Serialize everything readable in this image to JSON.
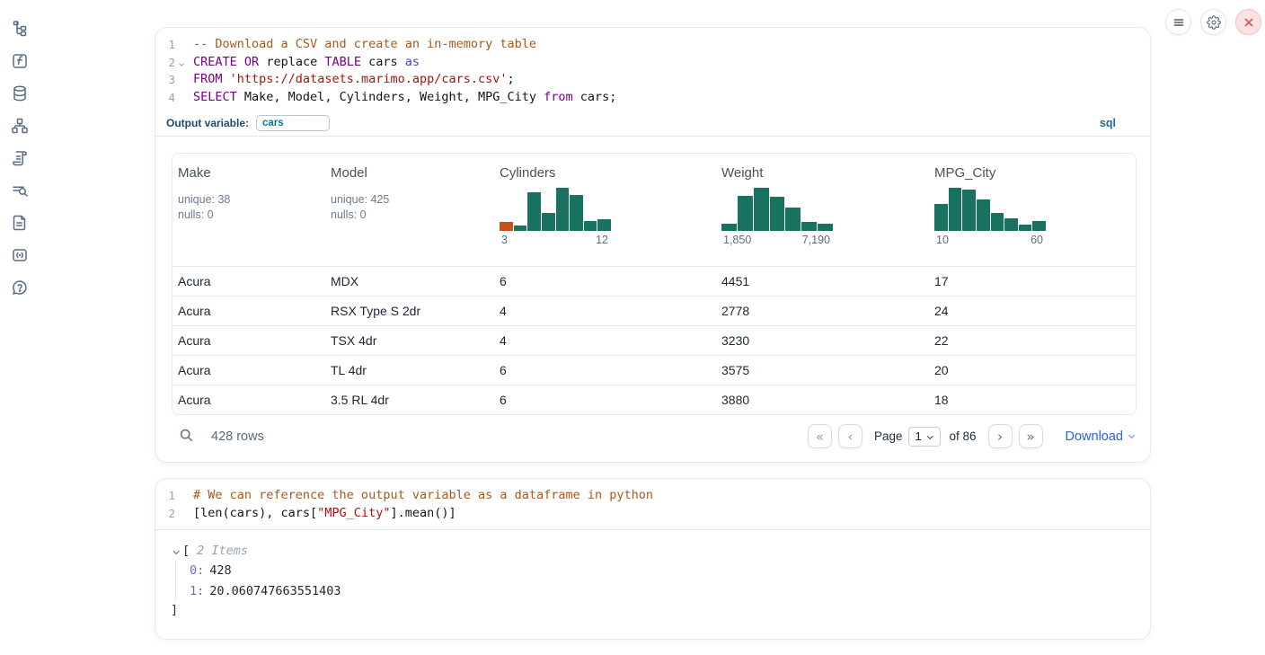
{
  "colors": {
    "accent": "#2563eb",
    "hist": "#17735f",
    "hist_highlight": "#c2511c",
    "keyword": "#770088",
    "string": "#aa1111"
  },
  "sidebar": {
    "items": [
      {
        "name": "file-explorer"
      },
      {
        "name": "variables"
      },
      {
        "name": "data-sources"
      },
      {
        "name": "dependency-graph"
      },
      {
        "name": "scratchpad"
      },
      {
        "name": "logs-search"
      },
      {
        "name": "documentation"
      },
      {
        "name": "snippets"
      },
      {
        "name": "help"
      }
    ]
  },
  "controls": {
    "menu": "menu",
    "settings": "settings",
    "close": "shutdown"
  },
  "cells": [
    {
      "language": "sql",
      "output_variable": {
        "label": "Output variable:",
        "value": "cars"
      },
      "language_tag": "sql",
      "lines": [
        {
          "num": "1",
          "fold": false,
          "tokens": [
            {
              "s": "comment",
              "t": "-- Download a CSV and create an in-memory table"
            }
          ]
        },
        {
          "num": "2",
          "fold": true,
          "tokens": [
            {
              "s": "keyword",
              "t": "CREATE"
            },
            {
              "s": "plain",
              "t": " "
            },
            {
              "s": "keyword",
              "t": "OR"
            },
            {
              "s": "plain",
              "t": " replace "
            },
            {
              "s": "keyword",
              "t": "TABLE"
            },
            {
              "s": "plain",
              "t": " cars "
            },
            {
              "s": "askw",
              "t": "as"
            }
          ]
        },
        {
          "num": "3",
          "fold": false,
          "tokens": [
            {
              "s": "keyword",
              "t": "FROM"
            },
            {
              "s": "plain",
              "t": " "
            },
            {
              "s": "string",
              "t": "'https://datasets.marimo.app/cars.csv'"
            },
            {
              "s": "plain",
              "t": ";"
            }
          ]
        },
        {
          "num": "4",
          "fold": false,
          "tokens": [
            {
              "s": "keyword",
              "t": "SELECT"
            },
            {
              "s": "plain",
              "t": " Make, Model, Cylinders, Weight, MPG_City "
            },
            {
              "s": "keyword",
              "t": "from"
            },
            {
              "s": "plain",
              "t": " cars;"
            }
          ]
        }
      ]
    },
    {
      "language": "python",
      "lines": [
        {
          "num": "1",
          "fold": false,
          "tokens": [
            {
              "s": "comment",
              "t": "# We can reference the output variable as a dataframe in python"
            }
          ]
        },
        {
          "num": "2",
          "fold": false,
          "tokens": [
            {
              "s": "plain",
              "t": "[len(cars), cars["
            },
            {
              "s": "string",
              "t": "\"MPG_City\""
            },
            {
              "s": "plain",
              "t": "].mean()]"
            }
          ]
        }
      ]
    }
  ],
  "table": {
    "columns": [
      {
        "name": "Make",
        "stats": [
          "unique: 38",
          "nulls: 0"
        ]
      },
      {
        "name": "Model",
        "stats": [
          "unique: 425",
          "nulls: 0"
        ]
      },
      {
        "name": "Cylinders",
        "histogram": {
          "min_label": "3",
          "max_label": "12",
          "bars": [
            0.21,
            0.12,
            0.9,
            0.41,
            1.0,
            0.83,
            0.22,
            0.28
          ],
          "highlight_first": true
        }
      },
      {
        "name": "Weight",
        "histogram": {
          "min_label": "1,850",
          "max_label": "7,190",
          "bars": [
            0.16,
            0.81,
            1.0,
            0.8,
            0.55,
            0.21,
            0.16
          ],
          "highlight_first": false
        }
      },
      {
        "name": "MPG_City",
        "histogram": {
          "min_label": "10",
          "max_label": "60",
          "bars": [
            0.63,
            1.0,
            0.95,
            0.73,
            0.42,
            0.3,
            0.15,
            0.22
          ],
          "highlight_first": false
        }
      }
    ],
    "rows": [
      [
        "Acura",
        "MDX",
        "6",
        "4451",
        "17"
      ],
      [
        "Acura",
        "RSX Type S 2dr",
        "4",
        "2778",
        "24"
      ],
      [
        "Acura",
        "TSX 4dr",
        "4",
        "3230",
        "22"
      ],
      [
        "Acura",
        "TL 4dr",
        "6",
        "3575",
        "20"
      ],
      [
        "Acura",
        "3.5 RL 4dr",
        "6",
        "3880",
        "18"
      ]
    ],
    "footer": {
      "row_count": "428 rows",
      "page_label": "Page",
      "page_value": "1",
      "of_label": "of 86",
      "download_label": "Download"
    }
  },
  "python_output": {
    "open_bracket": "[",
    "items_label": "2 Items",
    "entries": [
      {
        "key": "0:",
        "value": "428"
      },
      {
        "key": "1:",
        "value": "20.060747663551403"
      }
    ],
    "close_bracket": "]"
  }
}
